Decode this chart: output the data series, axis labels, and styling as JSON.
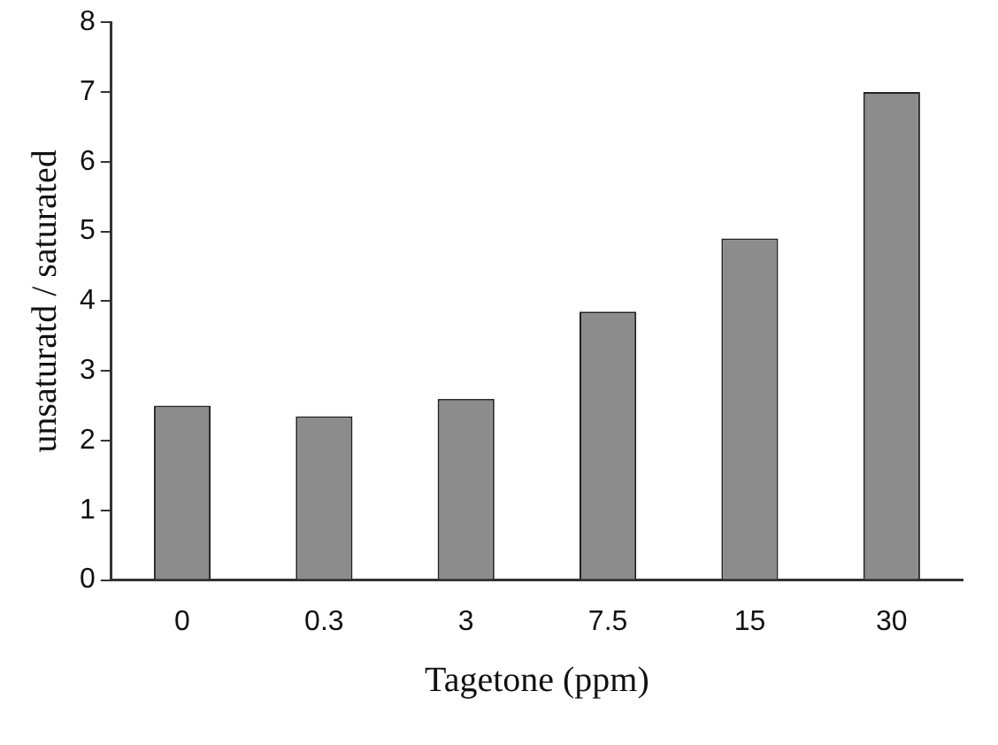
{
  "chart_data": {
    "type": "bar",
    "xlabel": "Tagetone (ppm)",
    "ylabel": "unsaturatd / saturated",
    "categories": [
      "0",
      "0.3",
      "3",
      "7.5",
      "15",
      "30"
    ],
    "values": [
      2.5,
      2.35,
      2.6,
      3.85,
      4.9,
      7.0
    ],
    "color": "#8c8c8c",
    "ylim": [
      0,
      8
    ],
    "yticks": [
      0,
      1,
      2,
      3,
      4,
      5,
      6,
      7,
      8
    ],
    "grid": false,
    "legend": false
  }
}
